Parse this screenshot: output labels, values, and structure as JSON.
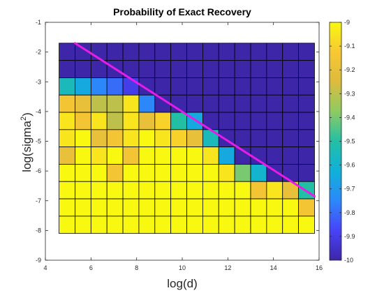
{
  "chart_data": {
    "type": "heatmap",
    "title": "Probability of Exact Recovery",
    "xlabel": "log(d)",
    "ylabel_base": "log(sigma",
    "ylabel_sup": "2",
    "ylabel_close": ")",
    "xlim": [
      4,
      16
    ],
    "ylim": [
      -9,
      -1
    ],
    "xticks": [
      "4",
      "6",
      "8",
      "10",
      "12",
      "14",
      "16"
    ],
    "yticks": [
      "-1",
      "-2",
      "-3",
      "-4",
      "-5",
      "-6",
      "-7",
      "-8",
      "-9"
    ],
    "colorbar": {
      "range": [
        -10,
        -9
      ],
      "ticks": [
        "-9",
        "-9.1",
        "-9.2",
        "-9.3",
        "-9.4",
        "-9.5",
        "-9.6",
        "-9.7",
        "-9.8",
        "-9.9",
        "-10"
      ],
      "colormap": [
        "#3e26a8",
        "#4743f8",
        "#2c88fa",
        "#10b1d9",
        "#23bfa5",
        "#8dcb62",
        "#ddbb3d",
        "#f8c832",
        "#f9f810"
      ]
    },
    "grid": {
      "x_edges": [
        4.6,
        15.8
      ],
      "y_edges": [
        -8.1,
        -1.7
      ],
      "rows_top_to_bottom": [
        [
          -10,
          -10,
          -10,
          -10,
          -10,
          -10,
          -10,
          -10,
          -10,
          -10,
          -10,
          -10,
          -10,
          -10,
          -10,
          -10
        ],
        [
          -10,
          -10,
          -10,
          -10,
          -10,
          -10,
          -10,
          -10,
          -10,
          -10,
          -10,
          -10,
          -10,
          -10,
          -10,
          -10
        ],
        [
          -9.55,
          -9.65,
          -9.75,
          -9.8,
          -9.9,
          -10,
          -10,
          -10,
          -10,
          -10,
          -10,
          -10,
          -10,
          -10,
          -10,
          -10
        ],
        [
          -9.15,
          -9.2,
          -9.3,
          -9.3,
          -9.05,
          -9.75,
          -10,
          -10,
          -10,
          -10,
          -10,
          -10,
          -10,
          -10,
          -10,
          -10
        ],
        [
          -9.05,
          -9.15,
          -9.05,
          -9.3,
          -9.05,
          -9.2,
          -9.1,
          -9.5,
          -9.65,
          -10,
          -10,
          -10,
          -10,
          -10,
          -10,
          -10
        ],
        [
          -9.05,
          -9,
          -9.2,
          -9.15,
          -9.05,
          -9,
          -9.05,
          -9.1,
          -9.2,
          -9.55,
          -10,
          -10,
          -10,
          -10,
          -10,
          -10
        ],
        [
          -9.2,
          -9,
          -9.05,
          -9,
          -9.15,
          -9,
          -9,
          -9,
          -9,
          -9.05,
          -9.65,
          -10,
          -10,
          -10,
          -10,
          -10
        ],
        [
          -9,
          -9,
          -9,
          -9.15,
          -9,
          -9,
          -9,
          -9,
          -9,
          -9,
          -9.05,
          -9.4,
          -9.6,
          -10,
          -10,
          -10
        ],
        [
          -9,
          -9,
          -9,
          -9,
          -9,
          -9,
          -9,
          -9,
          -9,
          -9,
          -9,
          -9,
          -9.15,
          -9.05,
          -9.2,
          -9.5
        ],
        [
          -9,
          -9,
          -9,
          -9,
          -9,
          -9,
          -9,
          -9,
          -9,
          -9,
          -9,
          -9,
          -9,
          -9,
          -9,
          -9.15
        ],
        [
          -9,
          -9,
          -9,
          -9,
          -9,
          -9,
          -9,
          -9,
          -9,
          -9,
          -9,
          -9,
          -9,
          -9,
          -9,
          -9
        ]
      ]
    },
    "line": {
      "color": "#e81ce8",
      "x": [
        5.3,
        15.8
      ],
      "y": [
        -1.7,
        -6.85
      ]
    }
  }
}
